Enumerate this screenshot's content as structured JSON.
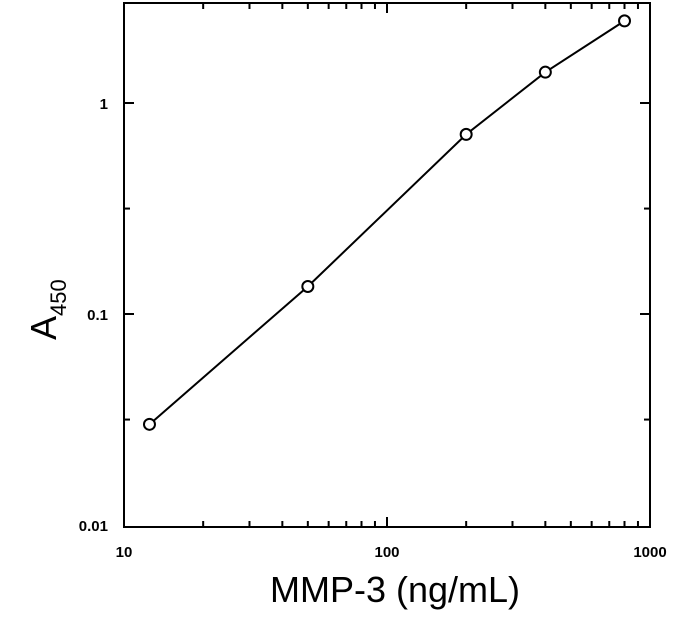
{
  "chart_data": {
    "type": "line",
    "xscale": "log",
    "yscale": "log",
    "xlim": [
      10,
      1000
    ],
    "ylim": [
      0.01,
      3
    ],
    "xlabel": "MMP-3 (ng/mL)",
    "ylabel": "A",
    "ylabel_sub": "450",
    "x_tick_labels": [
      "10",
      "100",
      "1000"
    ],
    "y_tick_labels": [
      "0.01",
      "0.1",
      "1"
    ],
    "grid": false,
    "series": [
      {
        "x": [
          12.5,
          50,
          200,
          400,
          800
        ],
        "y": [
          0.03,
          0.135,
          0.71,
          1.4,
          2.45
        ],
        "line_color": "#000000",
        "marker": "open-circle"
      }
    ]
  }
}
